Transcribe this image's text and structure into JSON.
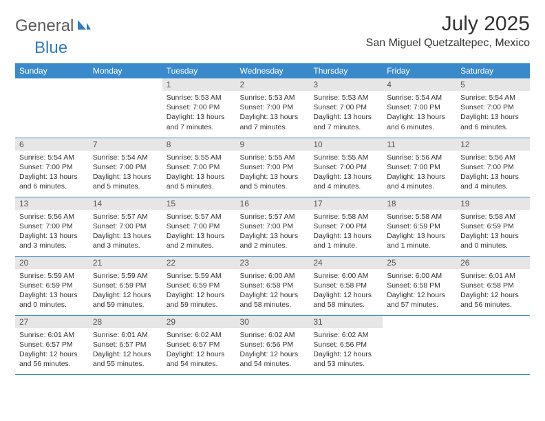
{
  "brand": {
    "text1": "General",
    "text2": "Blue",
    "color1": "#5a5a5a",
    "color2": "#2f7bbf",
    "icon_color": "#2f7bbf"
  },
  "title": "July 2025",
  "location": "San Miguel Quetzaltepec, Mexico",
  "colors": {
    "header_bg": "#3a8acb",
    "header_text": "#ffffff",
    "daynum_bg": "#e6e6e6",
    "daynum_text": "#555555",
    "cell_border": "#3a8acb",
    "body_text": "#333333"
  },
  "weekdays": [
    "Sunday",
    "Monday",
    "Tuesday",
    "Wednesday",
    "Thursday",
    "Friday",
    "Saturday"
  ],
  "weeks": [
    [
      {
        "blank": true
      },
      {
        "blank": true
      },
      {
        "n": "1",
        "sunrise": "5:53 AM",
        "sunset": "7:00 PM",
        "daylight": "13 hours and 7 minutes."
      },
      {
        "n": "2",
        "sunrise": "5:53 AM",
        "sunset": "7:00 PM",
        "daylight": "13 hours and 7 minutes."
      },
      {
        "n": "3",
        "sunrise": "5:53 AM",
        "sunset": "7:00 PM",
        "daylight": "13 hours and 7 minutes."
      },
      {
        "n": "4",
        "sunrise": "5:54 AM",
        "sunset": "7:00 PM",
        "daylight": "13 hours and 6 minutes."
      },
      {
        "n": "5",
        "sunrise": "5:54 AM",
        "sunset": "7:00 PM",
        "daylight": "13 hours and 6 minutes."
      }
    ],
    [
      {
        "n": "6",
        "sunrise": "5:54 AM",
        "sunset": "7:00 PM",
        "daylight": "13 hours and 6 minutes."
      },
      {
        "n": "7",
        "sunrise": "5:54 AM",
        "sunset": "7:00 PM",
        "daylight": "13 hours and 5 minutes."
      },
      {
        "n": "8",
        "sunrise": "5:55 AM",
        "sunset": "7:00 PM",
        "daylight": "13 hours and 5 minutes."
      },
      {
        "n": "9",
        "sunrise": "5:55 AM",
        "sunset": "7:00 PM",
        "daylight": "13 hours and 5 minutes."
      },
      {
        "n": "10",
        "sunrise": "5:55 AM",
        "sunset": "7:00 PM",
        "daylight": "13 hours and 4 minutes."
      },
      {
        "n": "11",
        "sunrise": "5:56 AM",
        "sunset": "7:00 PM",
        "daylight": "13 hours and 4 minutes."
      },
      {
        "n": "12",
        "sunrise": "5:56 AM",
        "sunset": "7:00 PM",
        "daylight": "13 hours and 4 minutes."
      }
    ],
    [
      {
        "n": "13",
        "sunrise": "5:56 AM",
        "sunset": "7:00 PM",
        "daylight": "13 hours and 3 minutes."
      },
      {
        "n": "14",
        "sunrise": "5:57 AM",
        "sunset": "7:00 PM",
        "daylight": "13 hours and 3 minutes."
      },
      {
        "n": "15",
        "sunrise": "5:57 AM",
        "sunset": "7:00 PM",
        "daylight": "13 hours and 2 minutes."
      },
      {
        "n": "16",
        "sunrise": "5:57 AM",
        "sunset": "7:00 PM",
        "daylight": "13 hours and 2 minutes."
      },
      {
        "n": "17",
        "sunrise": "5:58 AM",
        "sunset": "7:00 PM",
        "daylight": "13 hours and 1 minute."
      },
      {
        "n": "18",
        "sunrise": "5:58 AM",
        "sunset": "6:59 PM",
        "daylight": "13 hours and 1 minute."
      },
      {
        "n": "19",
        "sunrise": "5:58 AM",
        "sunset": "6:59 PM",
        "daylight": "13 hours and 0 minutes."
      }
    ],
    [
      {
        "n": "20",
        "sunrise": "5:59 AM",
        "sunset": "6:59 PM",
        "daylight": "13 hours and 0 minutes."
      },
      {
        "n": "21",
        "sunrise": "5:59 AM",
        "sunset": "6:59 PM",
        "daylight": "12 hours and 59 minutes."
      },
      {
        "n": "22",
        "sunrise": "5:59 AM",
        "sunset": "6:59 PM",
        "daylight": "12 hours and 59 minutes."
      },
      {
        "n": "23",
        "sunrise": "6:00 AM",
        "sunset": "6:58 PM",
        "daylight": "12 hours and 58 minutes."
      },
      {
        "n": "24",
        "sunrise": "6:00 AM",
        "sunset": "6:58 PM",
        "daylight": "12 hours and 58 minutes."
      },
      {
        "n": "25",
        "sunrise": "6:00 AM",
        "sunset": "6:58 PM",
        "daylight": "12 hours and 57 minutes."
      },
      {
        "n": "26",
        "sunrise": "6:01 AM",
        "sunset": "6:58 PM",
        "daylight": "12 hours and 56 minutes."
      }
    ],
    [
      {
        "n": "27",
        "sunrise": "6:01 AM",
        "sunset": "6:57 PM",
        "daylight": "12 hours and 56 minutes."
      },
      {
        "n": "28",
        "sunrise": "6:01 AM",
        "sunset": "6:57 PM",
        "daylight": "12 hours and 55 minutes."
      },
      {
        "n": "29",
        "sunrise": "6:02 AM",
        "sunset": "6:57 PM",
        "daylight": "12 hours and 54 minutes."
      },
      {
        "n": "30",
        "sunrise": "6:02 AM",
        "sunset": "6:56 PM",
        "daylight": "12 hours and 54 minutes."
      },
      {
        "n": "31",
        "sunrise": "6:02 AM",
        "sunset": "6:56 PM",
        "daylight": "12 hours and 53 minutes."
      },
      {
        "blank": true
      },
      {
        "blank": true
      }
    ]
  ],
  "labels": {
    "sunrise": "Sunrise:",
    "sunset": "Sunset:",
    "daylight": "Daylight:"
  }
}
